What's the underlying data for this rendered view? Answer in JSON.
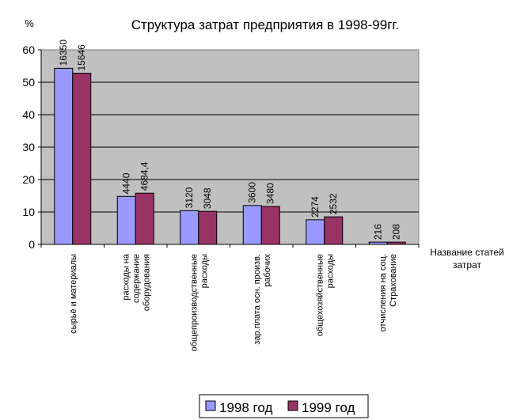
{
  "chart_data": {
    "type": "bar",
    "title": "Структура затрат предприятия в 1998-99гг.",
    "ylabel": "%",
    "xlabel_lines": [
      "Название статей",
      "затрат"
    ],
    "ylim": [
      0,
      60
    ],
    "yticks": [
      0,
      10,
      20,
      30,
      40,
      50,
      60
    ],
    "grid": true,
    "legend_position": "bottom",
    "plot_background": "#c0c0c0",
    "categories": [
      [
        "сырьё и материалы"
      ],
      [
        "расходы на",
        "содержание",
        "оборудования"
      ],
      [
        "общепроизводственные",
        "расходы"
      ],
      [
        "зар.плата осн. произв.",
        "рабочих"
      ],
      [
        "общехозяйственные",
        "расходы"
      ],
      [
        "отчисления на соц.",
        "Страхование"
      ]
    ],
    "series": [
      {
        "name": "1998 год",
        "color": "#9999ff",
        "values": [
          54.3,
          14.8,
          10.4,
          12.0,
          7.6,
          0.7
        ],
        "labels": [
          "16350",
          "4440",
          "3120",
          "3600",
          "2274",
          "216"
        ]
      },
      {
        "name": "1999 год",
        "color": "#993366",
        "values": [
          52.8,
          15.8,
          10.2,
          11.7,
          8.5,
          0.7
        ],
        "labels": [
          "15646",
          "4684,4",
          "3048",
          "3480",
          "2532",
          "208"
        ]
      }
    ]
  }
}
